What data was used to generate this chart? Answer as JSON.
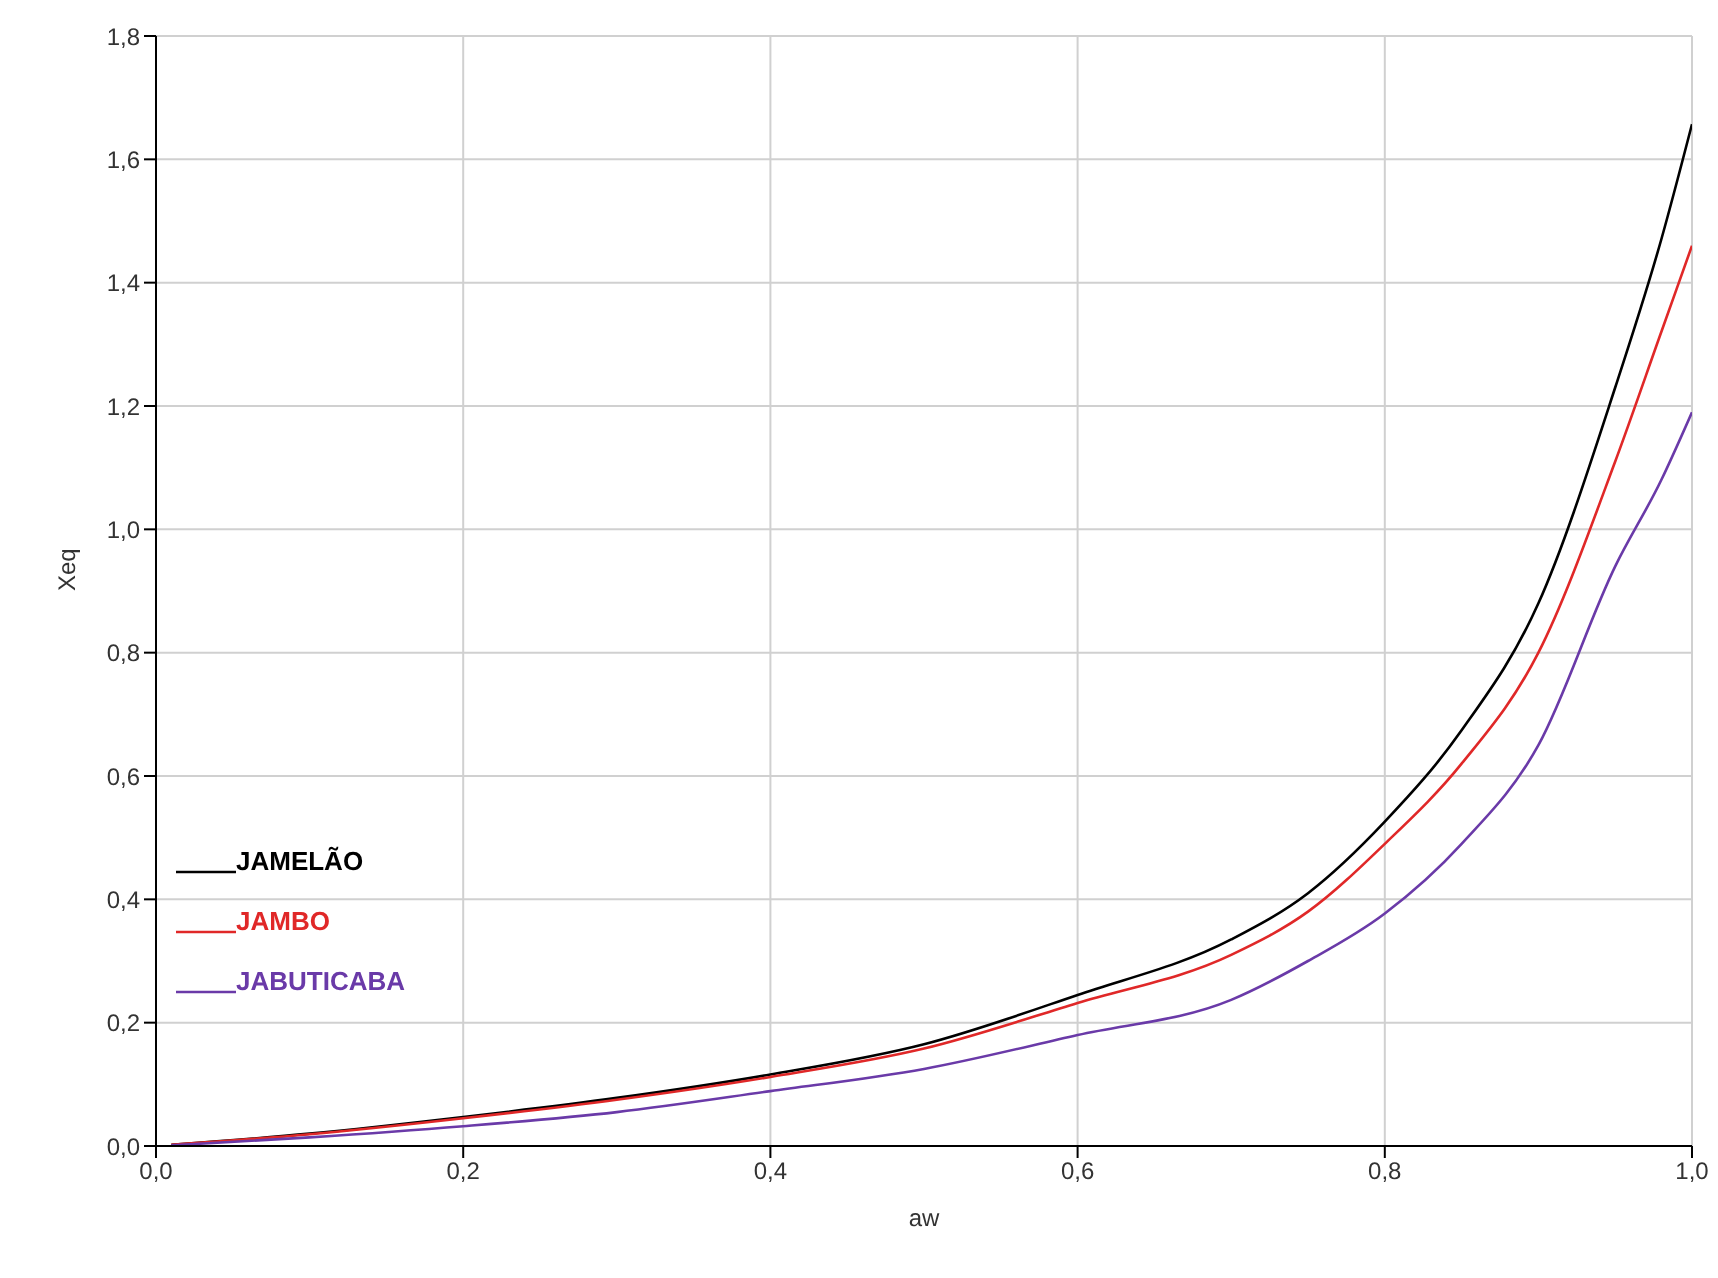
{
  "chart_data": {
    "type": "line",
    "xlabel": "aw",
    "ylabel": "Xeq",
    "x": [
      0.01,
      0.1,
      0.2,
      0.3,
      0.4,
      0.5,
      0.6,
      0.7,
      0.75,
      0.8,
      0.85,
      0.9,
      0.95,
      0.98,
      1.0
    ],
    "series": [
      {
        "name": "JAMELÃO",
        "color": "#000000",
        "values": [
          0.002,
          0.02,
          0.047,
          0.078,
          0.116,
          0.165,
          0.245,
          0.335,
          0.41,
          0.526,
          0.674,
          0.88,
          1.23,
          1.47,
          1.657
        ]
      },
      {
        "name": "JAMBO",
        "color": "#e02828",
        "values": [
          0.002,
          0.019,
          0.045,
          0.075,
          0.112,
          0.158,
          0.232,
          0.31,
          0.38,
          0.49,
          0.62,
          0.8,
          1.11,
          1.32,
          1.46
        ]
      },
      {
        "name": "JABUTICABA",
        "color": "#6a3aa8",
        "values": [
          0.001,
          0.014,
          0.032,
          0.055,
          0.089,
          0.125,
          0.18,
          0.237,
          0.3,
          0.377,
          0.49,
          0.65,
          0.94,
          1.08,
          1.19
        ]
      }
    ],
    "xlim": [
      0,
      1
    ],
    "xticks": [
      {
        "value": 0,
        "label": "0,0"
      },
      {
        "value": 0.2,
        "label": "0,2"
      },
      {
        "value": 0.4,
        "label": "0,4"
      },
      {
        "value": 0.6,
        "label": "0,6"
      },
      {
        "value": 0.8,
        "label": "0,8"
      },
      {
        "value": 1,
        "label": "1,0"
      }
    ],
    "ylim": [
      0,
      1.8
    ],
    "yticks": [
      {
        "value": 0,
        "label": "0,0"
      },
      {
        "value": 0.2,
        "label": "0,2"
      },
      {
        "value": 0.4,
        "label": "0,4"
      },
      {
        "value": 0.6,
        "label": "0,6"
      },
      {
        "value": 0.8,
        "label": "0,8"
      },
      {
        "value": 1,
        "label": "1,0"
      },
      {
        "value": 1.2,
        "label": "1,2"
      },
      {
        "value": 1.4,
        "label": "1,4"
      },
      {
        "value": 1.6,
        "label": "1,6"
      },
      {
        "value": 1.8,
        "label": "1,8"
      }
    ],
    "grid": true,
    "legend": "bottom left",
    "marker": "none",
    "line_style": "solid"
  }
}
